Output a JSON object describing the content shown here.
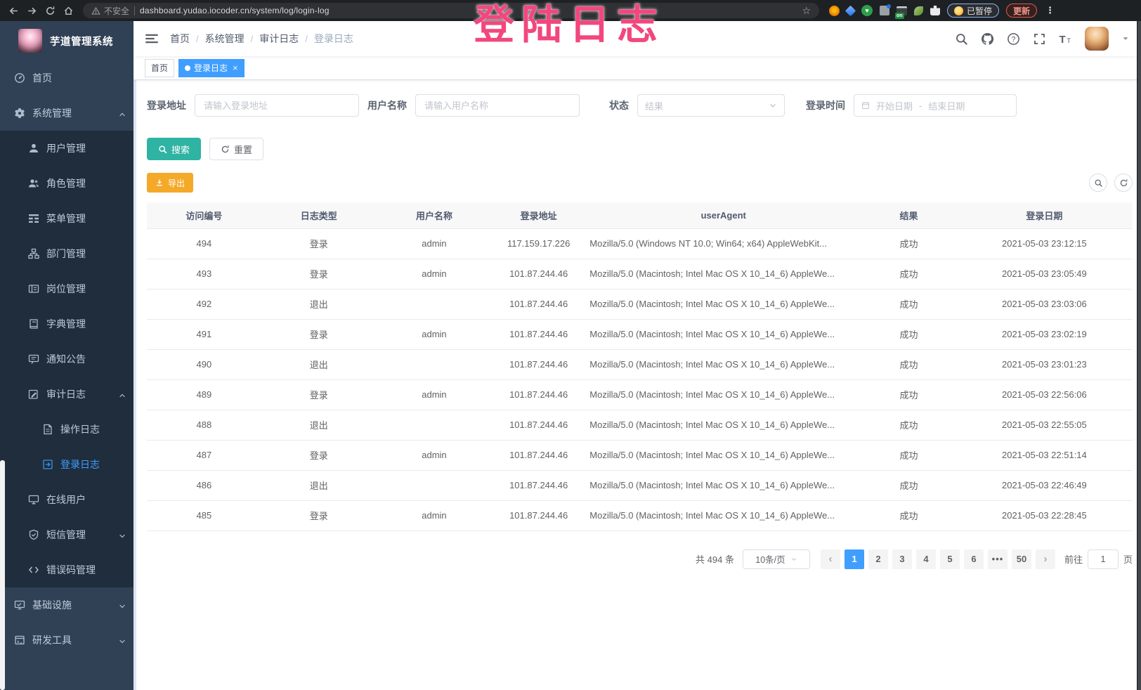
{
  "browser": {
    "security_label": "不安全",
    "url": "dashboard.yudao.iocoder.cn/system/log/login-log",
    "paused_badge": "已暂停",
    "update_badge": "更新",
    "extension_on_badge": "on"
  },
  "overlay_title": "登陆日志",
  "app": {
    "title": "芋道管理系统"
  },
  "sidebar": {
    "items": [
      {
        "label": "首页",
        "icon": "dashboard-icon",
        "level": 1
      },
      {
        "label": "系统管理",
        "icon": "gear-icon",
        "level": 1,
        "chevron": "up"
      },
      {
        "label": "用户管理",
        "icon": "user-icon",
        "level": 2
      },
      {
        "label": "角色管理",
        "icon": "roles-icon",
        "level": 2
      },
      {
        "label": "菜单管理",
        "icon": "menu-tree-icon",
        "level": 2
      },
      {
        "label": "部门管理",
        "icon": "org-tree-icon",
        "level": 2
      },
      {
        "label": "岗位管理",
        "icon": "post-icon",
        "level": 2
      },
      {
        "label": "字典管理",
        "icon": "dict-icon",
        "level": 2
      },
      {
        "label": "通知公告",
        "icon": "announcement-icon",
        "level": 2
      },
      {
        "label": "审计日志",
        "icon": "audit-log-icon",
        "level": 2,
        "chevron": "up"
      },
      {
        "label": "操作日志",
        "icon": "operation-log-icon",
        "level": 3
      },
      {
        "label": "登录日志",
        "icon": "login-log-icon",
        "level": 3,
        "active": true
      },
      {
        "label": "在线用户",
        "icon": "online-users-icon",
        "level": 2
      },
      {
        "label": "短信管理",
        "icon": "sms-icon",
        "level": 2,
        "chevron": "down"
      },
      {
        "label": "错误码管理",
        "icon": "error-code-icon",
        "level": 2
      },
      {
        "label": "基础设施",
        "icon": "infra-icon",
        "level": 1,
        "chevron": "down"
      },
      {
        "label": "研发工具",
        "icon": "devtools-icon",
        "level": 1,
        "chevron": "down"
      }
    ]
  },
  "breadcrumb": [
    "首页",
    "系统管理",
    "审计日志",
    "登录日志"
  ],
  "tabs": [
    {
      "label": "首页",
      "active": false,
      "closable": false
    },
    {
      "label": "登录日志",
      "active": true,
      "closable": true
    }
  ],
  "filters": {
    "address_label": "登录地址",
    "address_placeholder": "请输入登录地址",
    "username_label": "用户名称",
    "username_placeholder": "请输入用户名称",
    "status_label": "状态",
    "status_placeholder": "结果",
    "time_label": "登录时间",
    "date_start_placeholder": "开始日期",
    "date_separator": "-",
    "date_end_placeholder": "结束日期"
  },
  "buttons": {
    "search": "搜索",
    "reset": "重置",
    "export": "导出"
  },
  "table": {
    "columns": [
      "访问编号",
      "日志类型",
      "用户名称",
      "登录地址",
      "userAgent",
      "结果",
      "登录日期"
    ],
    "rows": [
      {
        "id": "494",
        "type": "登录",
        "user": "admin",
        "ip": "117.159.17.226",
        "agent": "Mozilla/5.0 (Windows NT 10.0; Win64; x64) AppleWebKit...",
        "result": "成功",
        "date": "2021-05-03 23:12:15"
      },
      {
        "id": "493",
        "type": "登录",
        "user": "admin",
        "ip": "101.87.244.46",
        "agent": "Mozilla/5.0 (Macintosh; Intel Mac OS X 10_14_6) AppleWe...",
        "result": "成功",
        "date": "2021-05-03 23:05:49"
      },
      {
        "id": "492",
        "type": "退出",
        "user": "",
        "ip": "101.87.244.46",
        "agent": "Mozilla/5.0 (Macintosh; Intel Mac OS X 10_14_6) AppleWe...",
        "result": "成功",
        "date": "2021-05-03 23:03:06"
      },
      {
        "id": "491",
        "type": "登录",
        "user": "admin",
        "ip": "101.87.244.46",
        "agent": "Mozilla/5.0 (Macintosh; Intel Mac OS X 10_14_6) AppleWe...",
        "result": "成功",
        "date": "2021-05-03 23:02:19"
      },
      {
        "id": "490",
        "type": "退出",
        "user": "",
        "ip": "101.87.244.46",
        "agent": "Mozilla/5.0 (Macintosh; Intel Mac OS X 10_14_6) AppleWe...",
        "result": "成功",
        "date": "2021-05-03 23:01:23"
      },
      {
        "id": "489",
        "type": "登录",
        "user": "admin",
        "ip": "101.87.244.46",
        "agent": "Mozilla/5.0 (Macintosh; Intel Mac OS X 10_14_6) AppleWe...",
        "result": "成功",
        "date": "2021-05-03 22:56:06"
      },
      {
        "id": "488",
        "type": "退出",
        "user": "",
        "ip": "101.87.244.46",
        "agent": "Mozilla/5.0 (Macintosh; Intel Mac OS X 10_14_6) AppleWe...",
        "result": "成功",
        "date": "2021-05-03 22:55:05"
      },
      {
        "id": "487",
        "type": "登录",
        "user": "admin",
        "ip": "101.87.244.46",
        "agent": "Mozilla/5.0 (Macintosh; Intel Mac OS X 10_14_6) AppleWe...",
        "result": "成功",
        "date": "2021-05-03 22:51:14"
      },
      {
        "id": "486",
        "type": "退出",
        "user": "",
        "ip": "101.87.244.46",
        "agent": "Mozilla/5.0 (Macintosh; Intel Mac OS X 10_14_6) AppleWe...",
        "result": "成功",
        "date": "2021-05-03 22:46:49"
      },
      {
        "id": "485",
        "type": "登录",
        "user": "admin",
        "ip": "101.87.244.46",
        "agent": "Mozilla/5.0 (Macintosh; Intel Mac OS X 10_14_6) AppleWe...",
        "result": "成功",
        "date": "2021-05-03 22:28:45"
      }
    ]
  },
  "pagination": {
    "total": "共 494 条",
    "page_size": "10条/页",
    "pages": [
      "1",
      "2",
      "3",
      "4",
      "5",
      "6",
      "•••",
      "50"
    ],
    "active_page": "1",
    "goto_label": "前往",
    "goto_value": "1",
    "page_unit": "页"
  },
  "header_icons": [
    "search-icon",
    "github-icon",
    "question-icon",
    "fullscreen-icon",
    "font-size-icon"
  ],
  "colors": {
    "primary": "#409EFF",
    "search_teal": "#2FB3A3",
    "export_orange": "#F5A929",
    "overlay_pink": "#F2477E",
    "sidebar_bg": "#304156",
    "submenu_bg": "#1F2D3D"
  }
}
